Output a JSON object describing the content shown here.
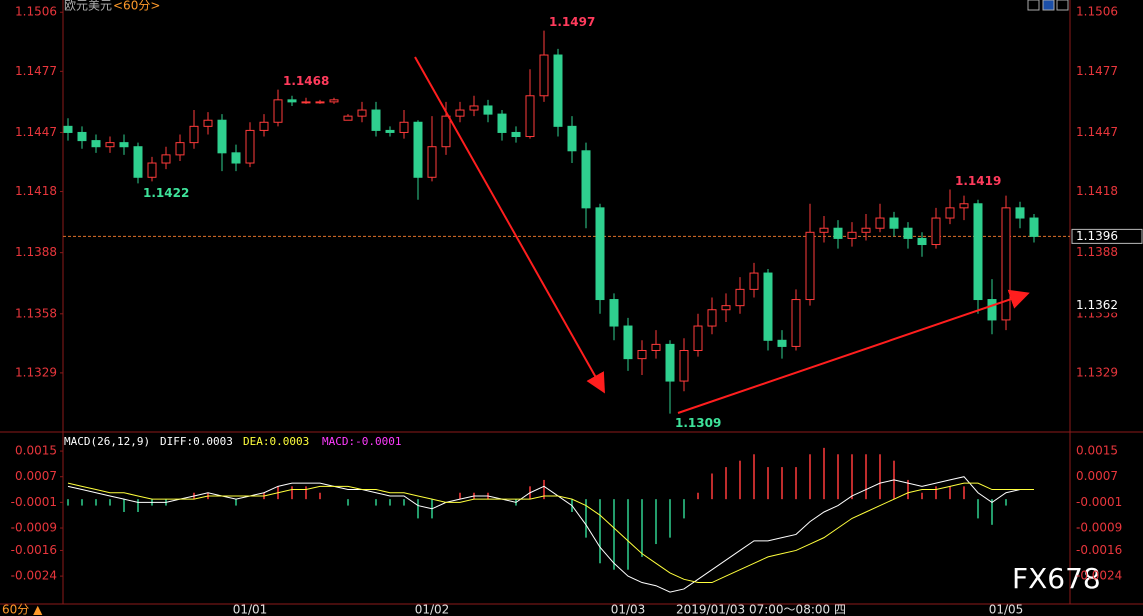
{
  "header": {
    "instrument": "欧元美元",
    "period": "<60分>"
  },
  "footer": {
    "period": "60分 ▲",
    "time": "2019/01/03 07:00～08:00 四"
  },
  "watermark": "FX678",
  "chart_data": [
    {
      "type": "candlestick",
      "categories": [
        null,
        null,
        null,
        null,
        null,
        null,
        null,
        null,
        null,
        null,
        null,
        null,
        null,
        "01/01",
        null,
        null,
        null,
        null,
        null,
        null,
        null,
        null,
        null,
        null,
        null,
        null,
        "01/02",
        null,
        null,
        null,
        null,
        null,
        null,
        null,
        null,
        null,
        null,
        null,
        null,
        null,
        "01/03",
        null,
        null,
        null,
        null,
        null,
        null,
        null,
        null,
        null,
        null,
        null,
        null,
        null,
        null,
        null,
        null,
        null,
        null,
        null,
        null,
        null,
        null,
        null,
        null,
        null,
        null,
        "01/05",
        null,
        null
      ],
      "open": [
        1.145,
        1.1447,
        1.1443,
        1.144,
        1.1442,
        1.144,
        1.1425,
        1.1432,
        1.1436,
        1.1442,
        1.145,
        1.1453,
        1.1437,
        1.1432,
        1.1448,
        1.1452,
        1.1463,
        1.1462,
        1.1462,
        1.1462,
        1.1453,
        1.1455,
        1.1458,
        1.1448,
        1.1447,
        1.1452,
        1.1425,
        1.144,
        1.1455,
        1.1458,
        1.146,
        1.1456,
        1.1447,
        1.1445,
        1.1465,
        1.1485,
        1.145,
        1.1438,
        1.141,
        1.1365,
        1.1352,
        1.1336,
        1.134,
        1.1343,
        1.1325,
        1.134,
        1.1352,
        1.136,
        1.1362,
        1.137,
        1.1378,
        1.1345,
        1.1342,
        1.1365,
        1.1398,
        1.14,
        1.1395,
        1.1398,
        1.14,
        1.1405,
        1.14,
        1.1395,
        1.1392,
        1.1405,
        1.141,
        1.1412,
        1.1365,
        1.1355,
        1.141,
        1.1405
      ],
      "high": [
        1.1454,
        1.145,
        1.1446,
        1.1445,
        1.1446,
        1.1442,
        1.1435,
        1.144,
        1.1446,
        1.1458,
        1.1457,
        1.1456,
        1.1441,
        1.1452,
        1.1456,
        1.1468,
        1.1465,
        1.1464,
        1.1463,
        1.1464,
        1.1456,
        1.1462,
        1.1462,
        1.145,
        1.1458,
        1.1453,
        1.1455,
        1.1462,
        1.1462,
        1.1465,
        1.1463,
        1.1458,
        1.145,
        1.1478,
        1.1497,
        1.1488,
        1.1455,
        1.1442,
        1.1412,
        1.1368,
        1.1356,
        1.1345,
        1.135,
        1.1345,
        1.1346,
        1.1358,
        1.1366,
        1.1368,
        1.1376,
        1.1383,
        1.138,
        1.135,
        1.137,
        1.1412,
        1.1406,
        1.1404,
        1.1403,
        1.1407,
        1.1412,
        1.1408,
        1.1403,
        1.1398,
        1.141,
        1.1419,
        1.1416,
        1.1414,
        1.1375,
        1.1416,
        1.1413,
        1.1407
      ],
      "low": [
        1.1443,
        1.1439,
        1.1437,
        1.1437,
        1.1436,
        1.1422,
        1.1423,
        1.1429,
        1.1433,
        1.1439,
        1.1446,
        1.1428,
        1.1428,
        1.143,
        1.1445,
        1.145,
        1.146,
        1.1461,
        1.1461,
        1.1461,
        1.1453,
        1.1452,
        1.1445,
        1.1445,
        1.1444,
        1.1414,
        1.1423,
        1.1436,
        1.1452,
        1.1455,
        1.1452,
        1.1443,
        1.1442,
        1.1444,
        1.1462,
        1.1445,
        1.1432,
        1.14,
        1.1358,
        1.1345,
        1.133,
        1.1328,
        1.1336,
        1.1309,
        1.132,
        1.1337,
        1.1348,
        1.1354,
        1.1358,
        1.1366,
        1.134,
        1.1336,
        1.134,
        1.1362,
        1.1393,
        1.139,
        1.1391,
        1.1394,
        1.1398,
        1.1396,
        1.139,
        1.1386,
        1.139,
        1.1402,
        1.1404,
        1.1358,
        1.1348,
        1.135,
        1.14,
        1.1393
      ],
      "close": [
        1.1447,
        1.1443,
        1.144,
        1.1442,
        1.144,
        1.1425,
        1.1432,
        1.1436,
        1.1442,
        1.145,
        1.1453,
        1.1437,
        1.1432,
        1.1448,
        1.1452,
        1.1463,
        1.1462,
        1.1462,
        1.1462,
        1.1463,
        1.1455,
        1.1458,
        1.1448,
        1.1447,
        1.1452,
        1.1425,
        1.144,
        1.1455,
        1.1458,
        1.146,
        1.1456,
        1.1447,
        1.1445,
        1.1465,
        1.1485,
        1.145,
        1.1438,
        1.141,
        1.1365,
        1.1352,
        1.1336,
        1.134,
        1.1343,
        1.1325,
        1.134,
        1.1352,
        1.136,
        1.1362,
        1.137,
        1.1378,
        1.1345,
        1.1342,
        1.1365,
        1.1398,
        1.14,
        1.1395,
        1.1398,
        1.14,
        1.1405,
        1.14,
        1.1395,
        1.1392,
        1.1405,
        1.141,
        1.1412,
        1.1365,
        1.1355,
        1.141,
        1.1405,
        1.1396
      ],
      "up_color": "#ff3b3b",
      "down_color": "#2fd08f",
      "ylim": [
        1.13,
        1.1512
      ],
      "yticks": [
        1.1506,
        1.1477,
        1.1447,
        1.1418,
        1.1388,
        1.1358,
        1.1329
      ],
      "last_price": 1.1396,
      "last_color": "#e0702a",
      "cursor_price": 1.1362
    },
    {
      "type": "macd",
      "title": "MACD(26,12,9)",
      "status": [
        "DIFF:0.0003",
        "DEA:0.0003",
        "MACD:-0.0001"
      ],
      "status_colors": [
        "#ffffff",
        "#ffff3c",
        "#ff3cff"
      ],
      "series": [
        {
          "color": "#ffffff",
          "values": [
            0.0004,
            0.0003,
            0.0002,
            0.0001,
            0.0,
            -0.0001,
            -0.0001,
            -0.0001,
            0.0,
            0.0001,
            0.0002,
            0.0001,
            0.0,
            0.0001,
            0.0002,
            0.0004,
            0.0005,
            0.0005,
            0.0005,
            0.0004,
            0.0003,
            0.0003,
            0.0002,
            0.0001,
            0.0001,
            -0.0002,
            -0.0003,
            -0.0001,
            0.0,
            0.0001,
            0.0001,
            0.0,
            -0.0001,
            0.0002,
            0.0004,
            0.0001,
            -0.0002,
            -0.0008,
            -0.0015,
            -0.002,
            -0.0024,
            -0.0026,
            -0.0027,
            -0.0029,
            -0.0028,
            -0.0025,
            -0.0022,
            -0.0019,
            -0.0016,
            -0.0013,
            -0.0013,
            -0.0012,
            -0.0011,
            -0.0007,
            -0.0004,
            -0.0002,
            0.0001,
            0.0003,
            0.0005,
            0.0006,
            0.0005,
            0.0004,
            0.0005,
            0.0006,
            0.0007,
            0.0002,
            -0.0001,
            0.0002,
            0.0003,
            0.0003
          ]
        },
        {
          "color": "#ffff3c",
          "values": [
            0.0005,
            0.0004,
            0.0003,
            0.0002,
            0.0002,
            0.0001,
            0.0,
            0.0,
            0.0,
            0.0,
            0.0001,
            0.0001,
            0.0001,
            0.0001,
            0.0001,
            0.0002,
            0.0003,
            0.0003,
            0.0004,
            0.0004,
            0.0004,
            0.0003,
            0.0003,
            0.0002,
            0.0002,
            0.0001,
            0.0,
            -0.0001,
            -0.0001,
            0.0,
            0.0,
            0.0,
            0.0,
            0.0,
            0.0001,
            0.0001,
            0.0,
            -0.0002,
            -0.0005,
            -0.0009,
            -0.0013,
            -0.0017,
            -0.002,
            -0.0023,
            -0.0025,
            -0.0026,
            -0.0026,
            -0.0024,
            -0.0022,
            -0.002,
            -0.0018,
            -0.0017,
            -0.0016,
            -0.0014,
            -0.0012,
            -0.0009,
            -0.0006,
            -0.0004,
            -0.0002,
            0.0,
            0.0002,
            0.0003,
            0.0003,
            0.0004,
            0.0005,
            0.0005,
            0.0003,
            0.0003,
            0.0003,
            0.0003
          ]
        }
      ],
      "histogram": [
        -0.0002,
        -0.0002,
        -0.0002,
        -0.0002,
        -0.0004,
        -0.0004,
        -0.0002,
        -0.0002,
        0,
        0.0002,
        0.0002,
        0,
        -0.0002,
        0,
        0.0002,
        0.0004,
        0.0004,
        0.0004,
        0.0002,
        0,
        -0.0002,
        0,
        -0.0002,
        -0.0002,
        -0.0002,
        -0.0006,
        -0.0006,
        0,
        0.0002,
        0.0002,
        0.0002,
        0,
        -0.0002,
        0.0004,
        0.0006,
        0,
        -0.0004,
        -0.0012,
        -0.002,
        -0.0022,
        -0.0022,
        -0.0018,
        -0.0014,
        -0.0012,
        -0.0006,
        0.0002,
        0.0008,
        0.001,
        0.0012,
        0.0014,
        0.001,
        0.001,
        0.001,
        0.0014,
        0.0016,
        0.0014,
        0.0014,
        0.0014,
        0.0014,
        0.0012,
        0.0006,
        0.0002,
        0.0004,
        0.0004,
        0.0004,
        -0.0006,
        -0.0008,
        -0.0002,
        0,
        0
      ],
      "hist_colors": [
        "#ff3b3b",
        "#2fd08f"
      ],
      "ylim": [
        -0.00327,
        0.00197
      ],
      "yticks": [
        0.0015,
        0.0007,
        -0.0001,
        -0.0009,
        -0.0016,
        -0.0024
      ]
    }
  ]
}
